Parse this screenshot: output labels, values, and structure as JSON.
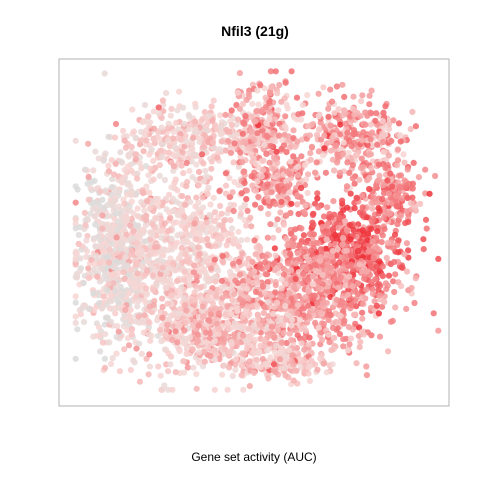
{
  "chart_data": {
    "type": "scatter",
    "title": "Nfil3 (21g)",
    "xlabel": "Gene set activity (AUC)",
    "ylabel": "",
    "axes": {
      "ticks": false,
      "box": true,
      "grid": false
    },
    "color_scale": {
      "low": "#d8dcdb",
      "mid": "#f8d6d4",
      "high": "#ee3038"
    },
    "clusters": [
      {
        "name": "left-grey",
        "cx": 0.12,
        "cy": 0.58,
        "sx": 0.055,
        "sy": 0.14,
        "n": 650,
        "level": [
          0.0,
          0.35
        ]
      },
      {
        "name": "left-center",
        "cx": 0.3,
        "cy": 0.58,
        "sx": 0.1,
        "sy": 0.16,
        "n": 850,
        "level": [
          0.15,
          0.45
        ]
      },
      {
        "name": "upper-left-arm",
        "cx": 0.32,
        "cy": 0.22,
        "sx": 0.09,
        "sy": 0.05,
        "n": 300,
        "level": [
          0.15,
          0.5
        ]
      },
      {
        "name": "top-center",
        "cx": 0.52,
        "cy": 0.18,
        "sx": 0.05,
        "sy": 0.07,
        "n": 260,
        "level": [
          0.25,
          0.75
        ]
      },
      {
        "name": "mid-right-arm",
        "cx": 0.55,
        "cy": 0.36,
        "sx": 0.05,
        "sy": 0.05,
        "n": 180,
        "level": [
          0.3,
          0.8
        ]
      },
      {
        "name": "upper-right",
        "cx": 0.76,
        "cy": 0.22,
        "sx": 0.07,
        "sy": 0.06,
        "n": 320,
        "level": [
          0.25,
          0.8
        ]
      },
      {
        "name": "right-edge",
        "cx": 0.86,
        "cy": 0.4,
        "sx": 0.04,
        "sy": 0.05,
        "n": 160,
        "level": [
          0.4,
          0.85
        ]
      },
      {
        "name": "right-hotspot",
        "cx": 0.74,
        "cy": 0.56,
        "sx": 0.08,
        "sy": 0.08,
        "n": 520,
        "level": [
          0.5,
          1.0
        ]
      },
      {
        "name": "lower-right",
        "cx": 0.62,
        "cy": 0.7,
        "sx": 0.12,
        "sy": 0.09,
        "n": 700,
        "level": [
          0.35,
          0.75
        ]
      },
      {
        "name": "bottom-center",
        "cx": 0.42,
        "cy": 0.8,
        "sx": 0.1,
        "sy": 0.06,
        "n": 420,
        "level": [
          0.2,
          0.6
        ]
      },
      {
        "name": "bottom-lobe",
        "cx": 0.55,
        "cy": 0.9,
        "sx": 0.07,
        "sy": 0.03,
        "n": 160,
        "level": [
          0.2,
          0.55
        ]
      }
    ]
  }
}
